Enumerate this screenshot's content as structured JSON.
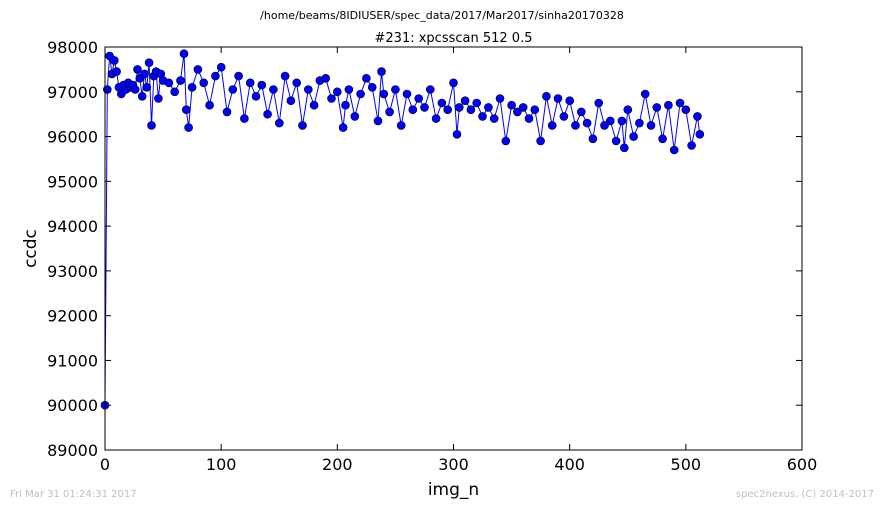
{
  "header": {
    "path": "/home/beams/8IDIUSER/spec_data/2017/Mar2017/sinha20170328"
  },
  "footer": {
    "date": "Fri Mar 31 01:24:31 2017",
    "credit": "spec2nexus, (C) 2014-2017"
  },
  "colors": {
    "series": "#0000ff",
    "line": "#0000ff"
  },
  "chart_data": {
    "type": "line",
    "title": "#231: xpcsscan 512 0.5",
    "xlabel": "img_n",
    "ylabel": "ccdc",
    "xlim": [
      0,
      600
    ],
    "ylim": [
      89000,
      98000
    ],
    "xticks": [
      0,
      100,
      200,
      300,
      400,
      500,
      600
    ],
    "yticks": [
      89000,
      90000,
      91000,
      92000,
      93000,
      94000,
      95000,
      96000,
      97000,
      98000
    ],
    "grid": false,
    "marker": "circle",
    "series": [
      {
        "x": [
          0,
          2,
          4,
          6,
          8,
          10,
          12,
          14,
          16,
          18,
          20,
          22,
          24,
          26,
          28,
          30,
          32,
          34,
          36,
          38,
          40,
          42,
          44,
          46,
          48,
          50,
          55,
          60,
          65,
          68,
          70,
          72,
          75,
          80,
          85,
          90,
          95,
          100,
          105,
          110,
          115,
          120,
          125,
          130,
          135,
          140,
          145,
          150,
          155,
          160,
          165,
          170,
          175,
          180,
          185,
          190,
          195,
          200,
          205,
          207,
          210,
          215,
          220,
          225,
          230,
          235,
          238,
          240,
          245,
          250,
          255,
          260,
          265,
          270,
          275,
          280,
          285,
          290,
          295,
          300,
          303,
          305,
          310,
          315,
          320,
          325,
          330,
          335,
          340,
          345,
          350,
          355,
          360,
          365,
          370,
          375,
          380,
          385,
          390,
          395,
          400,
          405,
          410,
          415,
          420,
          425,
          430,
          435,
          440,
          445,
          447,
          450,
          455,
          460,
          465,
          470,
          475,
          480,
          485,
          490,
          495,
          500,
          505,
          510,
          512
        ],
        "y": [
          90000,
          97050,
          97800,
          97400,
          97700,
          97450,
          97100,
          96950,
          97150,
          97050,
          97200,
          97100,
          97150,
          97050,
          97500,
          97300,
          96900,
          97400,
          97100,
          97650,
          96250,
          97350,
          97450,
          96850,
          97400,
          97250,
          97200,
          97000,
          97250,
          97850,
          96600,
          96200,
          97100,
          97500,
          97200,
          96700,
          97350,
          97550,
          96550,
          97050,
          97350,
          96400,
          97200,
          96900,
          97150,
          96500,
          97050,
          96300,
          97350,
          96800,
          97200,
          96250,
          97050,
          96700,
          97250,
          97300,
          96850,
          97000,
          96200,
          96700,
          97050,
          96450,
          96950,
          97300,
          97100,
          96350,
          97450,
          96950,
          96550,
          97050,
          96250,
          96950,
          96600,
          96850,
          96650,
          97050,
          96400,
          96750,
          96600,
          97200,
          96050,
          96650,
          96800,
          96600,
          96750,
          96450,
          96650,
          96400,
          96850,
          95900,
          96700,
          96550,
          96650,
          96400,
          96600,
          95900,
          96900,
          96250,
          96850,
          96450,
          96800,
          96250,
          96550,
          96300,
          95950,
          96750,
          96250,
          96350,
          95900,
          96350,
          95750,
          96600,
          96000,
          96300,
          96950,
          96250,
          96650,
          95950,
          96700,
          95700,
          96750,
          96600,
          95800,
          96450,
          96050
        ]
      }
    ]
  }
}
